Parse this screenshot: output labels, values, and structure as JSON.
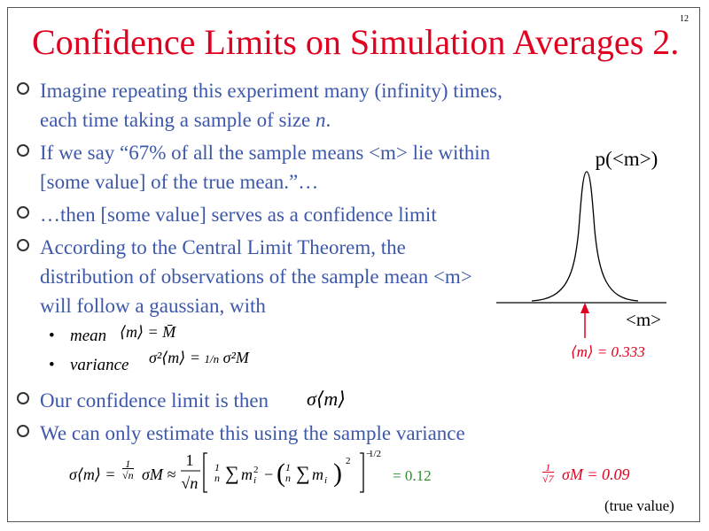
{
  "slide_number": "12",
  "title": "Confidence Limits on Simulation Averages 2.",
  "bullets": [
    {
      "before": "Imagine repeating this experiment many (infinity) times, each time taking a sample of size ",
      "italic": "n",
      "after": "."
    },
    {
      "text": "If we say “67% of all the sample means <m> lie within [some value] of the true mean.”…"
    },
    {
      "text": "…then [some value] serves as a confidence limit"
    },
    {
      "text": "According to the Central Limit Theorem, the distribution of observations of the sample mean <m> will follow a gaussian, with"
    },
    {
      "text": "Our confidence limit is then"
    },
    {
      "text": "We can only estimate this using the sample variance"
    }
  ],
  "sub_bullets": {
    "mean_label": "mean",
    "variance_label": "variance",
    "bullet_char": "•"
  },
  "formulas": {
    "mean": "⟨m⟩ = M̄",
    "variance_lhs": "σ²⟨m⟩ =",
    "variance_frac": "1/n",
    "variance_rhs": "σ²M",
    "conf_limit": "σ⟨m⟩",
    "estimate_lhs": "σ⟨m⟩ =",
    "estimate_mid": "σM ≈",
    "estimate_result": "= 0.12",
    "exponent": "1/2",
    "true_value_expr": "σM = 0.09",
    "true_value_frac_den": "√7",
    "true_value_label": "(true value)"
  },
  "graph": {
    "y_label": "p(<m>)",
    "x_label": "<m>",
    "marker_label": "⟨m⟩ = 0.333"
  },
  "colors": {
    "title": "#e00020",
    "bullet_text": "#3d58a8",
    "highlight_green": "#2e8b2e",
    "highlight_red": "#e00020"
  }
}
